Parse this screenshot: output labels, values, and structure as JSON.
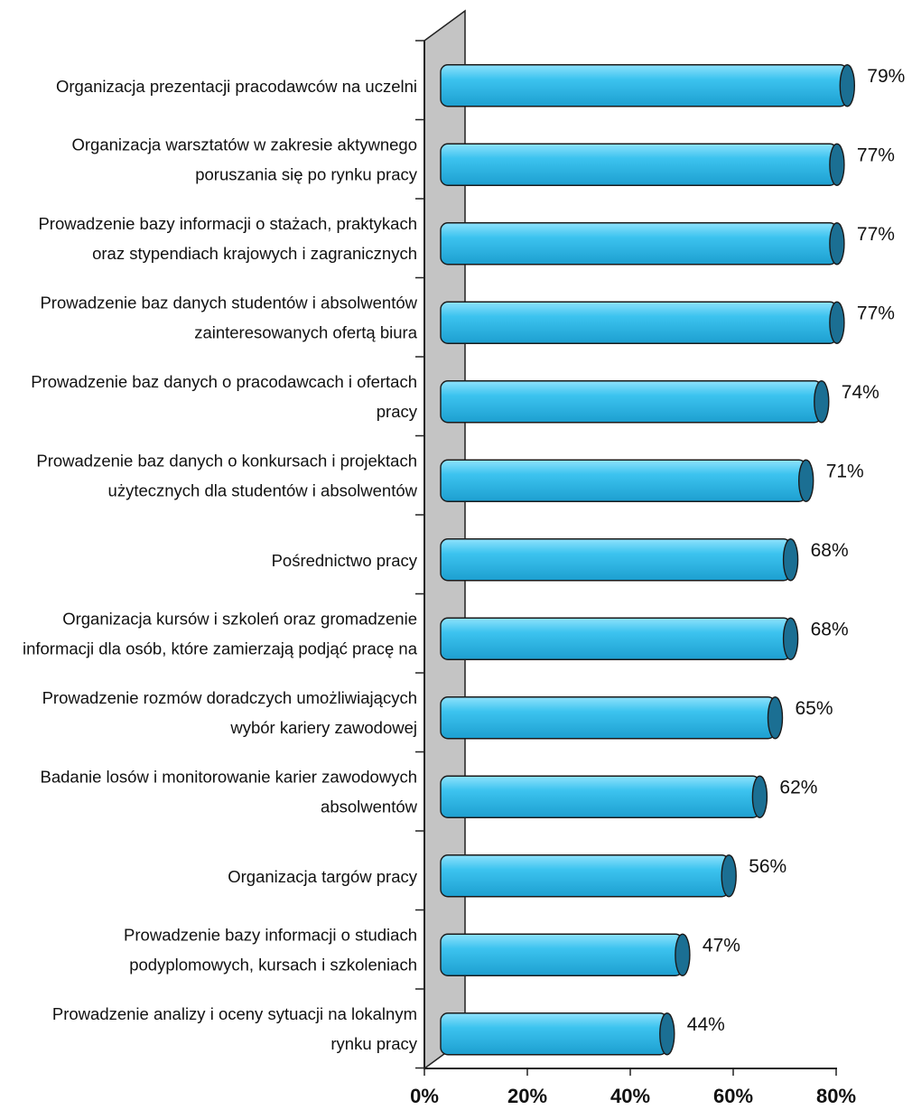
{
  "chart_data": {
    "type": "bar",
    "orientation": "horizontal",
    "style": "3d-cylinder",
    "categories": [
      [
        "Organizacja prezentacji pracodawców na uczelni"
      ],
      [
        "Organizacja warsztatów w zakresie aktywnego",
        "poruszania się po rynku pracy"
      ],
      [
        "Prowadzenie bazy informacji o stażach, praktykach",
        "oraz stypendiach krajowych i zagranicznych"
      ],
      [
        "Prowadzenie baz danych studentów i absolwentów",
        "zainteresowanych ofertą biura"
      ],
      [
        "Prowadzenie baz danych o pracodawcach i ofertach",
        "pracy"
      ],
      [
        "Prowadzenie baz danych o konkursach i projektach",
        "użytecznych dla studentów i absolwentów"
      ],
      [
        "Pośrednictwo pracy"
      ],
      [
        "Organizacja kursów i szkoleń oraz gromadzenie",
        "informacji dla osób, które zamierzają podjąć pracę na"
      ],
      [
        "Prowadzenie rozmów doradczych umożliwiających",
        "wybór kariery zawodowej"
      ],
      [
        "Badanie losów i monitorowanie karier zawodowych",
        "absolwentów"
      ],
      [
        "Organizacja targów pracy"
      ],
      [
        "Prowadzenie bazy informacji o studiach",
        "podyplomowych, kursach i szkoleniach"
      ],
      [
        "Prowadzenie analizy i oceny sytuacji na lokalnym",
        "rynku pracy"
      ]
    ],
    "values": [
      79,
      77,
      77,
      77,
      74,
      71,
      68,
      68,
      65,
      62,
      56,
      47,
      44
    ],
    "value_labels": [
      "79%",
      "77%",
      "77%",
      "77%",
      "74%",
      "71%",
      "68%",
      "68%",
      "65%",
      "62%",
      "56%",
      "47%",
      "44%"
    ],
    "xlim": [
      0,
      80
    ],
    "xticks": [
      0,
      20,
      40,
      60,
      80
    ],
    "xtick_labels": [
      "0%",
      "20%",
      "40%",
      "60%",
      "80%"
    ],
    "grid": false,
    "colors": {
      "bar_fill": "#29b6e8",
      "bar_highlight": "#7fdcfb",
      "bar_cap": "#1b6f93",
      "bar_edge": "#1a1a1a",
      "wall": "#c4c4c4"
    }
  }
}
